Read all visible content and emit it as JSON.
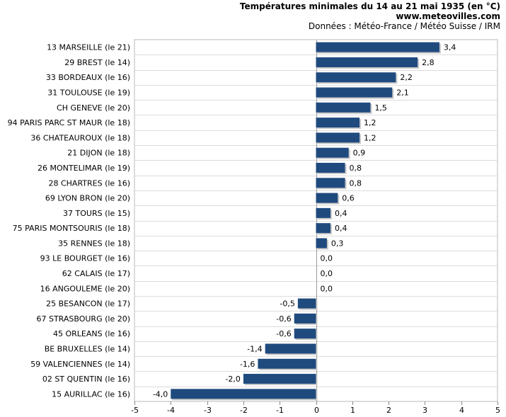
{
  "header": {
    "title": "Températures minimales du 14 au 21 mai 1935 (en °C)",
    "site": "www.meteovilles.com",
    "source": "Données : Météo-France / Météo Suisse / IRM"
  },
  "chart_data": {
    "type": "bar",
    "orientation": "horizontal",
    "title": "Températures minimales du 14 au 21 mai 1935 (en °C)",
    "xlim": [
      -5,
      5
    ],
    "xticks": [
      "-5",
      "-4",
      "-3",
      "-2",
      "-1",
      "0",
      "1",
      "2",
      "3",
      "4",
      "5"
    ],
    "grid": true,
    "bar_color": "#1f4a7e",
    "categories": [
      "13 MARSEILLE (le 21)",
      "29 BREST (le 14)",
      "33 BORDEAUX (le 16)",
      "31 TOULOUSE (le 19)",
      "CH GENEVE (le 20)",
      "94 PARIS PARC ST MAUR (le 18)",
      "36 CHATEAUROUX (le 18)",
      "21 DIJON (le 18)",
      "26 MONTELIMAR (le 19)",
      "28 CHARTRES (le 16)",
      "69 LYON BRON (le 20)",
      "37 TOURS (le 15)",
      "75 PARIS MONTSOURIS (le 18)",
      "35 RENNES (le 18)",
      "93 LE BOURGET (le 16)",
      "62 CALAIS (le 17)",
      "16 ANGOULEME (le 20)",
      "25 BESANCON (le 17)",
      "67 STRASBOURG (le 20)",
      "45 ORLEANS (le 16)",
      "BE BRUXELLES (le 14)",
      "59 VALENCIENNES (le 14)",
      "02 ST QUENTIN (le 16)",
      "15 AURILLAC (le 16)"
    ],
    "values": [
      3.4,
      2.8,
      2.2,
      2.1,
      1.5,
      1.2,
      1.2,
      0.9,
      0.8,
      0.8,
      0.6,
      0.4,
      0.4,
      0.3,
      0.0,
      0.0,
      0.0,
      -0.5,
      -0.6,
      -0.6,
      -1.4,
      -1.6,
      -2.0,
      -4.0
    ],
    "value_labels": [
      "3,4",
      "2,8",
      "2,2",
      "2,1",
      "1,5",
      "1,2",
      "1,2",
      "0,9",
      "0,8",
      "0,8",
      "0,6",
      "0,4",
      "0,4",
      "0,3",
      "0,0",
      "0,0",
      "0,0",
      "-0,5",
      "-0,6",
      "-0,6",
      "-1,4",
      "-1,6",
      "-2,0",
      "-4,0"
    ]
  }
}
